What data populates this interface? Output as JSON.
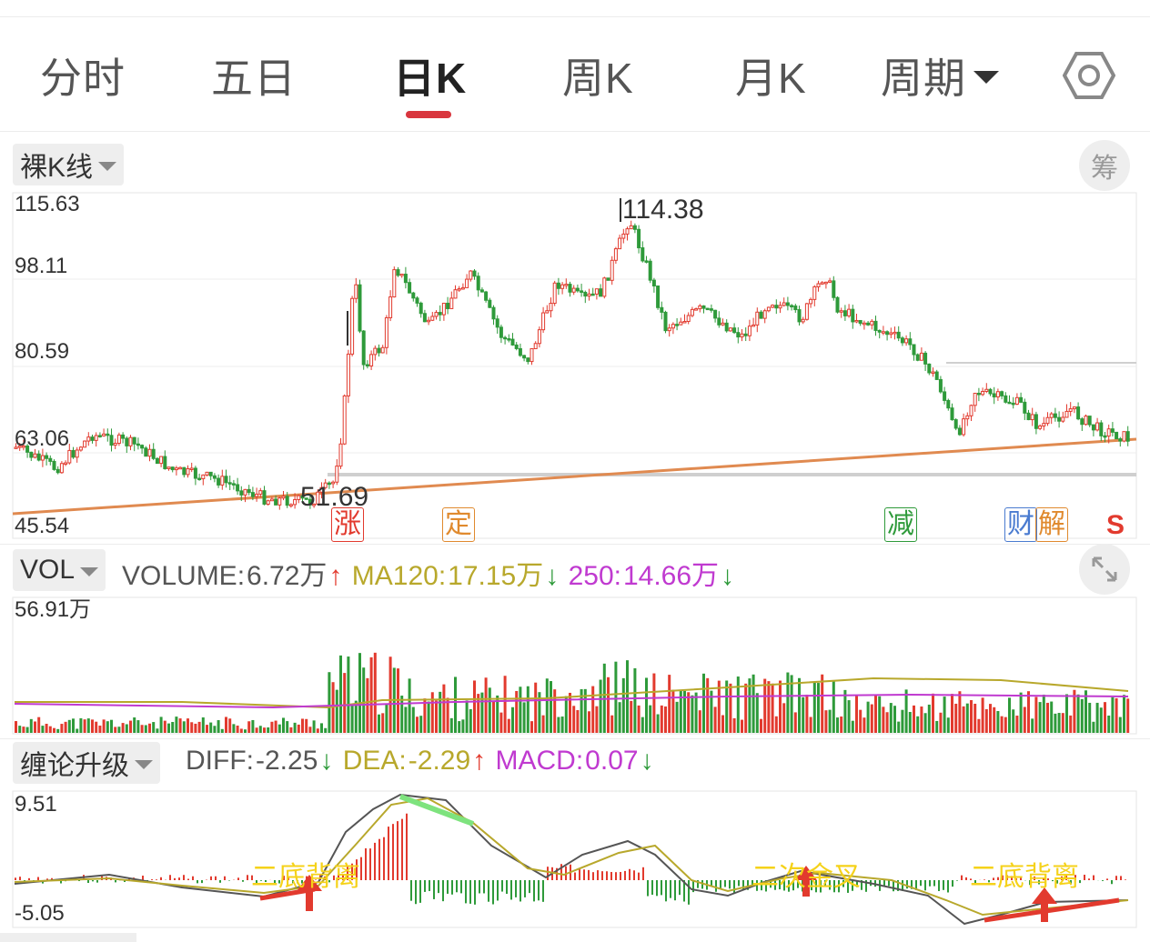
{
  "tabs": {
    "items": [
      {
        "label": "分时"
      },
      {
        "label": "五日"
      },
      {
        "label": "日K"
      },
      {
        "label": "周K"
      },
      {
        "label": "月K"
      }
    ],
    "period_label": "周期",
    "active_index": 2
  },
  "kline": {
    "type_chip": "裸K线",
    "chip_btn": "筹",
    "axis": {
      "top": "115.63",
      "mid1": "98.11",
      "mid2": "80.59",
      "mid3": "63.06",
      "bottom": "45.54"
    },
    "high_label": "114.38",
    "low_label": "51.69",
    "markers": [
      {
        "text": "涨",
        "color": "#e23a2e"
      },
      {
        "text": "定",
        "color": "#e08a2e"
      },
      {
        "text": "减",
        "color": "#2e9a3a"
      },
      {
        "text": "财",
        "color": "#4a7bd0"
      },
      {
        "text": "解",
        "color": "#e08a2e"
      },
      {
        "text": "S",
        "color": "#e23a2e"
      }
    ]
  },
  "volume": {
    "chip": "VOL",
    "volume_label": "VOLUME:",
    "volume_value": "6.72万",
    "ma120_label": "MA120:",
    "ma120_value": "17.15万",
    "ma250_label": "250:",
    "ma250_value": "14.66万",
    "arrow_up": "↑",
    "arrow_down": "↓",
    "axis_top": "56.91万"
  },
  "macd": {
    "chip": "缠论升级",
    "diff_label": "DIFF:",
    "diff_value": "-2.25",
    "dea_label": "DEA:",
    "dea_value": "-2.29",
    "macd_label": "MACD:",
    "macd_value": "0.07",
    "arrow_up": "↑",
    "arrow_down": "↓",
    "axis_top": "9.51",
    "axis_bottom": "-5.05",
    "annotations": [
      {
        "text": "二底背离"
      },
      {
        "text": "二次金叉"
      },
      {
        "text": "二底背离"
      }
    ]
  },
  "colors": {
    "up": "#e23a2e",
    "down": "#2e9a3a",
    "trend": "#e08a50",
    "ma120": "#b8a82c",
    "ma250": "#c03ad0",
    "accent": "#d9363e"
  }
}
